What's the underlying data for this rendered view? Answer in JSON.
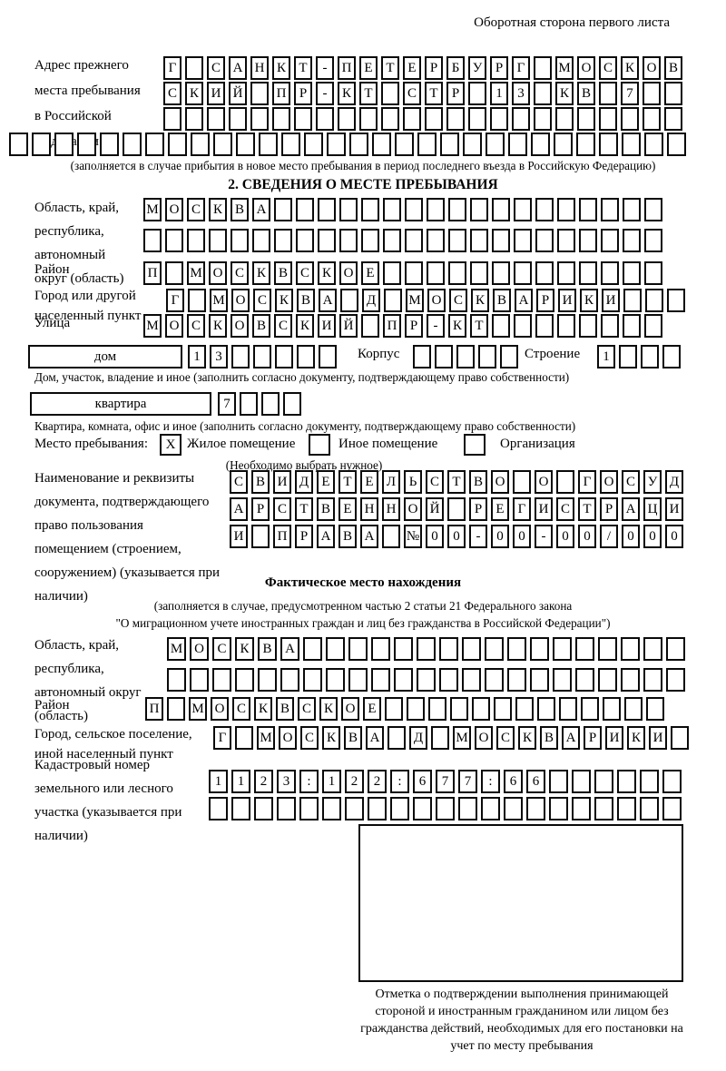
{
  "page": {
    "header": "Оборотная сторона первого листа"
  },
  "prev_address": {
    "label": "Адрес прежнего места пребывания в Российской Федерации",
    "rows": {
      "r1": "Г САНКТ-ПЕТЕРБУРГ МОСКОВ",
      "r2": "СКИЙ ПР-КТ СТР 13 КВ 7",
      "r3": "",
      "r4": ""
    },
    "caption": "(заполняется в случае прибытия в новое место пребывания в период последнего въезда в Российскую Федерацию)"
  },
  "section2": {
    "title": "2. СВЕДЕНИЯ О МЕСТЕ ПРЕБЫВАНИЯ",
    "oblast": {
      "label": "Область, край, республика, автономный округ (область)",
      "r1": "МОСКВА",
      "r2": ""
    },
    "rayon": {
      "label": "Район",
      "r1": "П МОСКВСКОЕ"
    },
    "gorod": {
      "label": "Город или другой населенный пункт",
      "r1": "Г МОСКВА Д МОСКВАРИКИ"
    },
    "ulitsa": {
      "label": "Улица",
      "r1": "МОСКОВСКИЙ ПР-КТ"
    },
    "dom": {
      "box_label": "дом",
      "cells": "13",
      "korpus_label": "Корпус",
      "korpus_cells": "",
      "stroenie_label": "Строение",
      "stroenie_cells": "1",
      "caption": "Дом, участок, владение и иное (заполнить согласно документу, подтверждающему право собственности)"
    },
    "kvartira": {
      "box_label": "квартира",
      "cells": "7",
      "caption": "Квартира, комната, офис и иное (заполнить согласно документу, подтверждающему право собственности)"
    },
    "mesto": {
      "label": "Место пребывания:",
      "options": [
        {
          "label": "Жилое помещение",
          "checked": "X"
        },
        {
          "label": "Иное помещение",
          "checked": ""
        },
        {
          "label": "Организация",
          "checked": ""
        }
      ],
      "note": "(Необходимо выбрать нужное)"
    },
    "doc": {
      "label": "Наименование и реквизиты документа, подтверждающего право пользования помещением (строением, сооружением) (указывается при наличии)",
      "r1": "СВИДЕТЕЛЬСТВО О ГОСУД",
      "r2": "АРСТВЕННОЙ РЕГИСТРАЦИ",
      "r3": "И ПРАВА №00-00-00/000"
    }
  },
  "fact": {
    "title": "Фактическое место нахождения",
    "caption_line1": "(заполняется в случае, предусмотренном частью 2 статьи 21 Федерального закона",
    "caption_line2": "\"О миграционном учете иностранных граждан и лиц без гражданства в Российской Федерации\")",
    "oblast": {
      "label": "Область, край, республика, автономный округ (область)",
      "r1": "МОСКВА",
      "r2": ""
    },
    "rayon": {
      "label": "Район",
      "r1": "П МОСКВСКОЕ"
    },
    "gorod": {
      "label": "Город, сельское поселение, иной населенный пункт",
      "r1": "Г МОСКВА Д МОСКВАРИКИ"
    },
    "kadastr": {
      "label": "Кадастровый номер земельного или лесного участка (указывается при наличии)",
      "r1": "1123:122:677:66",
      "r2": ""
    },
    "mark_caption": "Отметка о подтверждении выполнения принимающей стороной и иностранным гражданином или лицом без гражданства действий, необходимых для его постановки на учет по месту пребывания"
  }
}
